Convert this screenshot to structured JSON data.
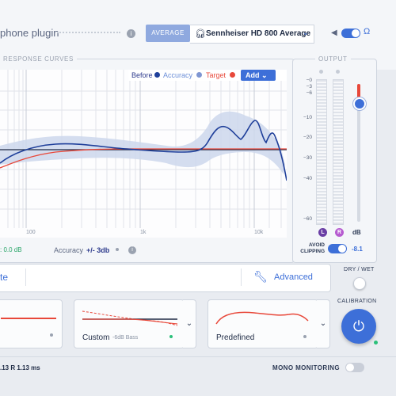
{
  "header": {
    "title": "phone plugin",
    "mode_button": "AVERAGE",
    "headphone_model": "Sennheiser HD 800 Average"
  },
  "curves": {
    "section_title": "RESPONSE CURVES",
    "legend": {
      "before": "Before",
      "accuracy": "Accuracy",
      "target": "Target",
      "add_button": "Add"
    },
    "x_ticks": [
      "100",
      "1k",
      "10k"
    ],
    "gain_label": ": 0.0 dB",
    "accuracy_label": "Accuracy",
    "accuracy_value": "+/- 3db"
  },
  "output": {
    "section_title": "OUTPUT",
    "db_ticks": [
      "−0",
      "−3",
      "−6",
      "−10",
      "−20",
      "−30",
      "−40",
      "−60"
    ],
    "left_channel": "L",
    "right_channel": "R",
    "db_unit": "dB",
    "avoid_clipping_label": "AVOID CLIPPING",
    "avoid_clipping_value": "-8.1"
  },
  "controls": {
    "left_button_partial": "te",
    "advanced_button": "Advanced",
    "dry_wet_label": "DRY / WET",
    "calibration_label": "CALIBRATION"
  },
  "presets": {
    "custom_name": "Custom",
    "custom_sub": "-6dB Bass",
    "predefined_name": "Predefined"
  },
  "footer": {
    "latency": ".13 R 1.13 ms",
    "mono_monitoring": "MONO MONITORING"
  },
  "colors": {
    "accent": "#3d6fd8",
    "before": "#1f3f9a",
    "target": "#e8483a",
    "band": "#c9d4ea"
  }
}
